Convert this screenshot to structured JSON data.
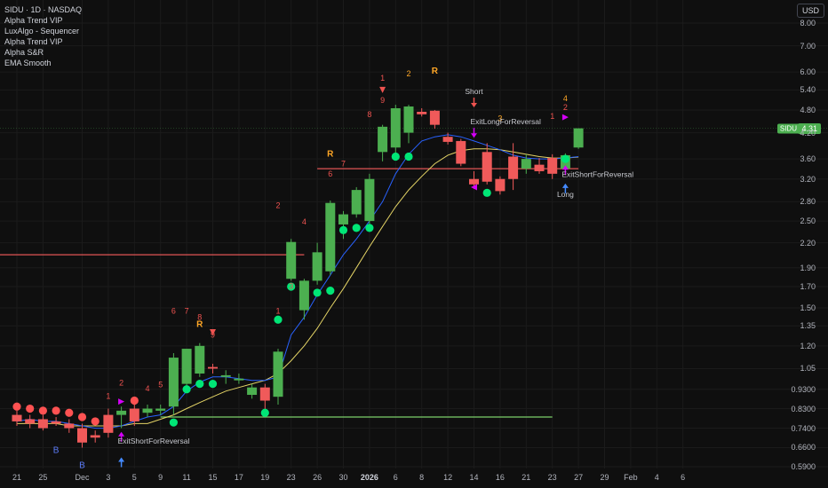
{
  "header": {
    "symbol_line": "SIDU · 1D · NASDAQ",
    "indicators": [
      "Alpha Trend VIP",
      "LuxAlgo - Sequencer",
      "Alpha Trend VIP",
      "Alpha S&R",
      "EMA Smooth"
    ]
  },
  "currency": "USD",
  "last_price": {
    "symbol": "SIDU",
    "value": "4.31"
  },
  "colors": {
    "up": "#4caf50",
    "down": "#f05a5a",
    "trend_blue": "#2962ff",
    "ema_yellow": "#e4d466",
    "dot_green": "#00e676",
    "dot_red": "#ff5252",
    "seq_red": "#ef5350",
    "seq_orange": "#ffa726",
    "signal_purple": "#d500f9",
    "level_red": "#e05555",
    "level_green": "#7ccf6a"
  },
  "chart_data": {
    "type": "candlestick",
    "y_scale": "log",
    "ylim": [
      0.55,
      9.0
    ],
    "y_ticks": [
      "8.00",
      "7.00",
      "6.00",
      "5.40",
      "4.80",
      "4.20",
      "3.60",
      "3.20",
      "2.80",
      "2.50",
      "2.20",
      "1.90",
      "1.70",
      "1.50",
      "1.35",
      "1.20",
      "1.05",
      "0.9300",
      "0.8300",
      "0.7400",
      "0.6600",
      "0.5900"
    ],
    "x_ticks": [
      {
        "i": 0,
        "label": "21"
      },
      {
        "i": 2,
        "label": "25"
      },
      {
        "i": 5,
        "label": "Dec"
      },
      {
        "i": 7,
        "label": "3"
      },
      {
        "i": 9,
        "label": "5"
      },
      {
        "i": 11,
        "label": "9"
      },
      {
        "i": 13,
        "label": "11"
      },
      {
        "i": 15,
        "label": "15"
      },
      {
        "i": 17,
        "label": "17"
      },
      {
        "i": 19,
        "label": "19"
      },
      {
        "i": 21,
        "label": "23"
      },
      {
        "i": 23,
        "label": "26"
      },
      {
        "i": 25,
        "label": "30"
      },
      {
        "i": 27,
        "label": "2026",
        "bold": true
      },
      {
        "i": 29,
        "label": "6"
      },
      {
        "i": 31,
        "label": "8"
      },
      {
        "i": 33,
        "label": "12"
      },
      {
        "i": 35,
        "label": "14"
      },
      {
        "i": 37,
        "label": "16"
      },
      {
        "i": 39,
        "label": "21"
      },
      {
        "i": 41,
        "label": "23"
      },
      {
        "i": 43,
        "label": "27"
      },
      {
        "i": 45,
        "label": "29"
      },
      {
        "i": 47,
        "label": "Feb"
      },
      {
        "i": 49,
        "label": "4"
      },
      {
        "i": 51,
        "label": "6"
      }
    ],
    "candles": [
      {
        "o": 0.8,
        "h": 0.82,
        "l": 0.75,
        "c": 0.77
      },
      {
        "o": 0.78,
        "h": 0.8,
        "l": 0.74,
        "c": 0.76
      },
      {
        "o": 0.78,
        "h": 0.8,
        "l": 0.73,
        "c": 0.74
      },
      {
        "o": 0.77,
        "h": 0.79,
        "l": 0.75,
        "c": 0.76
      },
      {
        "o": 0.76,
        "h": 0.78,
        "l": 0.72,
        "c": 0.74
      },
      {
        "o": 0.74,
        "h": 0.76,
        "l": 0.66,
        "c": 0.68
      },
      {
        "o": 0.71,
        "h": 0.73,
        "l": 0.68,
        "c": 0.7
      },
      {
        "o": 0.8,
        "h": 0.83,
        "l": 0.7,
        "c": 0.72
      },
      {
        "o": 0.8,
        "h": 0.84,
        "l": 0.74,
        "c": 0.82
      },
      {
        "o": 0.83,
        "h": 0.86,
        "l": 0.75,
        "c": 0.77
      },
      {
        "o": 0.81,
        "h": 0.85,
        "l": 0.79,
        "c": 0.83
      },
      {
        "o": 0.82,
        "h": 0.85,
        "l": 0.8,
        "c": 0.83
      },
      {
        "o": 0.84,
        "h": 1.15,
        "l": 0.8,
        "c": 1.12
      },
      {
        "o": 0.96,
        "h": 1.18,
        "l": 0.94,
        "c": 1.18
      },
      {
        "o": 1.02,
        "h": 1.22,
        "l": 1.0,
        "c": 1.2
      },
      {
        "o": 1.06,
        "h": 1.08,
        "l": 1.02,
        "c": 1.05
      },
      {
        "o": 1.0,
        "h": 1.04,
        "l": 0.96,
        "c": 1.01
      },
      {
        "o": 0.98,
        "h": 1.02,
        "l": 0.96,
        "c": 0.99
      },
      {
        "o": 0.9,
        "h": 0.96,
        "l": 0.88,
        "c": 0.94
      },
      {
        "o": 0.94,
        "h": 0.96,
        "l": 0.8,
        "c": 0.87
      },
      {
        "o": 0.89,
        "h": 1.18,
        "l": 0.85,
        "c": 1.16
      },
      {
        "o": 1.78,
        "h": 2.25,
        "l": 1.76,
        "c": 2.21
      },
      {
        "o": 1.48,
        "h": 1.78,
        "l": 1.4,
        "c": 1.76
      },
      {
        "o": 1.76,
        "h": 2.2,
        "l": 1.72,
        "c": 2.08
      },
      {
        "o": 1.86,
        "h": 2.82,
        "l": 1.82,
        "c": 2.78
      },
      {
        "o": 2.45,
        "h": 2.65,
        "l": 2.25,
        "c": 2.6
      },
      {
        "o": 2.6,
        "h": 3.05,
        "l": 2.55,
        "c": 3.0
      },
      {
        "o": 2.5,
        "h": 3.3,
        "l": 2.45,
        "c": 3.2
      },
      {
        "o": 3.75,
        "h": 4.4,
        "l": 3.55,
        "c": 4.35
      },
      {
        "o": 3.85,
        "h": 4.95,
        "l": 3.7,
        "c": 4.85
      },
      {
        "o": 4.2,
        "h": 4.95,
        "l": 3.95,
        "c": 4.9
      },
      {
        "o": 4.75,
        "h": 4.85,
        "l": 4.62,
        "c": 4.68
      },
      {
        "o": 4.78,
        "h": 4.8,
        "l": 4.3,
        "c": 4.4
      },
      {
        "o": 4.1,
        "h": 4.2,
        "l": 3.92,
        "c": 3.98
      },
      {
        "o": 4.0,
        "h": 4.05,
        "l": 3.45,
        "c": 3.5
      },
      {
        "o": 3.2,
        "h": 3.35,
        "l": 3.02,
        "c": 3.1
      },
      {
        "o": 3.75,
        "h": 3.95,
        "l": 3.1,
        "c": 3.15
      },
      {
        "o": 3.2,
        "h": 3.25,
        "l": 2.92,
        "c": 2.98
      },
      {
        "o": 3.65,
        "h": 3.95,
        "l": 3.0,
        "c": 3.2
      },
      {
        "o": 3.4,
        "h": 3.7,
        "l": 3.3,
        "c": 3.6
      },
      {
        "o": 3.48,
        "h": 3.62,
        "l": 3.3,
        "c": 3.35
      },
      {
        "o": 3.62,
        "h": 3.7,
        "l": 3.2,
        "c": 3.3
      },
      {
        "o": 3.4,
        "h": 3.72,
        "l": 3.35,
        "c": 3.68
      },
      {
        "o": 3.85,
        "h": 4.28,
        "l": 3.82,
        "c": 4.31
      }
    ],
    "alpha_trend": [
      0.77,
      0.78,
      0.77,
      0.77,
      0.76,
      0.75,
      0.74,
      0.74,
      0.75,
      0.77,
      0.79,
      0.8,
      0.84,
      0.92,
      0.97,
      1.0,
      1.0,
      0.99,
      0.98,
      0.98,
      1.0,
      1.28,
      1.42,
      1.62,
      1.82,
      2.05,
      2.25,
      2.5,
      2.8,
      3.3,
      3.7,
      4.0,
      4.1,
      4.15,
      4.1,
      4.0,
      3.9,
      3.8,
      3.68,
      3.62,
      3.6,
      3.6,
      3.62,
      3.65
    ],
    "ema_smooth": [
      0.76,
      0.76,
      0.76,
      0.76,
      0.75,
      0.75,
      0.75,
      0.75,
      0.75,
      0.76,
      0.76,
      0.78,
      0.8,
      0.83,
      0.86,
      0.89,
      0.92,
      0.94,
      0.96,
      0.98,
      1.02,
      1.1,
      1.2,
      1.33,
      1.5,
      1.68,
      1.9,
      2.15,
      2.42,
      2.72,
      3.0,
      3.25,
      3.5,
      3.68,
      3.78,
      3.82,
      3.82,
      3.8,
      3.75,
      3.7,
      3.65,
      3.62,
      3.62,
      3.64
    ],
    "levels": [
      {
        "price": 2.05,
        "from_i": -1,
        "to_i": 22,
        "color": "#e05555"
      },
      {
        "price": 3.4,
        "from_i": 23,
        "to_i": 43,
        "color": "#e05555"
      },
      {
        "price": 0.79,
        "from_i": 11,
        "to_i": 41,
        "color": "#7ccf6a"
      }
    ],
    "dots": [
      {
        "i": 0,
        "price": 0.84,
        "color": "#ff5252"
      },
      {
        "i": 1,
        "price": 0.83,
        "color": "#ff5252"
      },
      {
        "i": 2,
        "price": 0.82,
        "color": "#ff5252"
      },
      {
        "i": 3,
        "price": 0.82,
        "color": "#ff5252"
      },
      {
        "i": 4,
        "price": 0.81,
        "color": "#ff5252"
      },
      {
        "i": 5,
        "price": 0.79,
        "color": "#ff5252"
      },
      {
        "i": 6,
        "price": 0.77,
        "color": "#ff5252"
      },
      {
        "i": 9,
        "price": 0.87,
        "color": "#ff5252"
      },
      {
        "i": 12,
        "price": 0.765,
        "color": "#00e676"
      },
      {
        "i": 13,
        "price": 0.93,
        "color": "#00e676"
      },
      {
        "i": 14,
        "price": 0.96,
        "color": "#00e676"
      },
      {
        "i": 15,
        "price": 0.96,
        "color": "#00e676"
      },
      {
        "i": 19,
        "price": 0.81,
        "color": "#00e676"
      },
      {
        "i": 20,
        "price": 1.4,
        "color": "#00e676"
      },
      {
        "i": 21,
        "price": 1.7,
        "color": "#00e676"
      },
      {
        "i": 23,
        "price": 1.64,
        "color": "#00e676"
      },
      {
        "i": 24,
        "price": 1.66,
        "color": "#00e676"
      },
      {
        "i": 25,
        "price": 2.37,
        "color": "#00e676"
      },
      {
        "i": 26,
        "price": 2.4,
        "color": "#00e676"
      },
      {
        "i": 27,
        "price": 2.4,
        "color": "#00e676"
      },
      {
        "i": 29,
        "price": 3.65,
        "color": "#00e676"
      },
      {
        "i": 30,
        "price": 3.65,
        "color": "#00e676"
      },
      {
        "i": 36,
        "price": 2.95,
        "color": "#00e676"
      },
      {
        "i": 42,
        "price": 3.6,
        "color": "#00e676"
      }
    ],
    "seq_labels": [
      {
        "i": 7,
        "price": 0.88,
        "text": "1",
        "color": "#ef5350"
      },
      {
        "i": 8,
        "price": 0.95,
        "text": "2",
        "color": "#ef5350"
      },
      {
        "i": 10,
        "price": 0.92,
        "text": "4",
        "color": "#ef5350"
      },
      {
        "i": 11,
        "price": 0.94,
        "text": "5",
        "color": "#ef5350"
      },
      {
        "i": 12,
        "price": 1.45,
        "text": "6",
        "color": "#ef5350"
      },
      {
        "i": 13,
        "price": 1.45,
        "text": "7",
        "color": "#ef5350"
      },
      {
        "i": 14,
        "price": 1.4,
        "text": "8",
        "color": "#ef5350"
      },
      {
        "i": 15,
        "price": 1.26,
        "text": "9",
        "color": "#ef5350"
      },
      {
        "i": 20,
        "price": 1.45,
        "text": "1",
        "color": "#ef5350"
      },
      {
        "i": 20,
        "price": 2.7,
        "text": "2",
        "color": "#ef5350"
      },
      {
        "i": 21,
        "price": 1.68,
        "text": "3",
        "color": "#ef5350"
      },
      {
        "i": 22,
        "price": 2.45,
        "text": "4",
        "color": "#ef5350"
      },
      {
        "i": 24,
        "price": 3.25,
        "text": "6",
        "color": "#ef5350"
      },
      {
        "i": 25,
        "price": 3.45,
        "text": "7",
        "color": "#ef5350"
      },
      {
        "i": 27,
        "price": 4.6,
        "text": "8",
        "color": "#ef5350"
      },
      {
        "i": 28,
        "price": 5.7,
        "text": "1",
        "color": "#ef5350"
      },
      {
        "i": 28,
        "price": 5.0,
        "text": "9",
        "color": "#ef5350"
      },
      {
        "i": 30,
        "price": 5.85,
        "text": "2",
        "color": "#ffa726"
      },
      {
        "i": 37,
        "price": 4.5,
        "text": "3",
        "color": "#ffa726"
      },
      {
        "i": 41,
        "price": 4.55,
        "text": "1",
        "color": "#ef5350"
      },
      {
        "i": 42,
        "price": 5.05,
        "text": "4",
        "color": "#ffa726"
      },
      {
        "i": 42,
        "price": 4.8,
        "text": "2",
        "color": "#ef5350"
      }
    ],
    "r_labels": [
      {
        "i": 14,
        "price": 1.34,
        "text": "R"
      },
      {
        "i": 24,
        "price": 3.65,
        "text": "R"
      },
      {
        "i": 32,
        "price": 5.95,
        "text": "R"
      }
    ],
    "b_labels": [
      {
        "i": 3,
        "price": 0.64,
        "text": "B"
      },
      {
        "i": 5,
        "price": 0.585,
        "text": "B"
      }
    ],
    "signals": [
      {
        "i": 8,
        "type": "exit",
        "dir": "up",
        "price": 0.72,
        "text": "ExitShortForReversal"
      },
      {
        "i": 8,
        "type": "entry",
        "dir": "up",
        "price": 0.62,
        "text": ""
      },
      {
        "i": 35,
        "type": "entry",
        "dir": "down",
        "price": 4.9,
        "text": "Short"
      },
      {
        "i": 35,
        "type": "exit",
        "dir": "down",
        "price": 4.1,
        "text": "ExitLongForReversal"
      },
      {
        "i": 42,
        "type": "exit",
        "dir": "up",
        "price": 3.45,
        "text": "ExitShortForReversal"
      },
      {
        "i": 42,
        "type": "entry",
        "dir": "up",
        "price": 3.1,
        "text": "Long"
      }
    ],
    "small_markers": [
      {
        "i": 8,
        "price": 0.865,
        "dir": "right",
        "color": "#d500f9"
      },
      {
        "i": 15,
        "price": 1.3,
        "dir": "down",
        "color": "#ef5350"
      },
      {
        "i": 28,
        "price": 5.4,
        "dir": "down",
        "color": "#ef5350"
      },
      {
        "i": 35,
        "price": 3.05,
        "dir": "left",
        "color": "#d500f9"
      },
      {
        "i": 42,
        "price": 4.6,
        "dir": "right",
        "color": "#d500f9"
      }
    ]
  }
}
